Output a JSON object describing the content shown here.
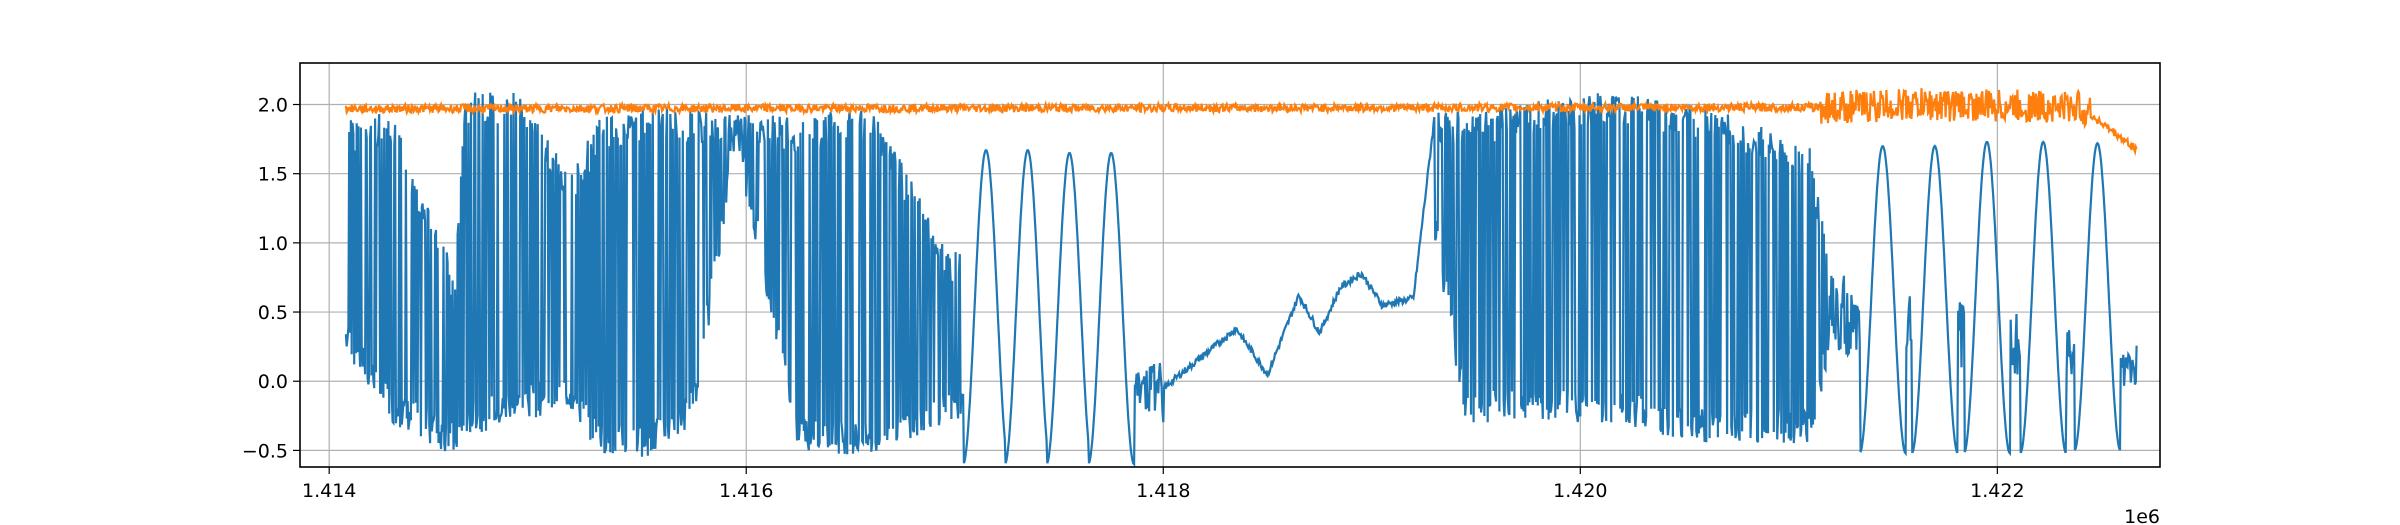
{
  "chart_data": {
    "type": "line",
    "title": "",
    "xlabel": "",
    "ylabel": "",
    "x_offset_label": "1e6",
    "xlim": [
      1.41386,
      1.42278
    ],
    "ylim": [
      -0.62,
      2.3
    ],
    "xticks": [
      1.414,
      1.416,
      1.418,
      1.42,
      1.422
    ],
    "xtick_labels": [
      "1.414",
      "1.416",
      "1.418",
      "1.420",
      "1.422"
    ],
    "yticks": [
      -0.5,
      0.0,
      0.5,
      1.0,
      1.5,
      2.0
    ],
    "ytick_labels": [
      "−0.5",
      "0.0",
      "0.5",
      "1.0",
      "1.5",
      "2.0"
    ],
    "grid": true,
    "series": [
      {
        "color": "#1f77b4",
        "x_range": [
          1.41408,
          1.42267
        ],
        "envelope": [
          {
            "x": 1.41408,
            "min": 0.2,
            "max": 1.9
          },
          {
            "x": 1.4143,
            "min": -0.3,
            "max": 1.95
          },
          {
            "x": 1.4146,
            "min": -0.55,
            "max": 0.8
          },
          {
            "x": 1.41465,
            "min": -0.4,
            "max": 2.1
          },
          {
            "x": 1.4149,
            "min": -0.3,
            "max": 2.1
          },
          {
            "x": 1.41515,
            "min": -0.2,
            "max": 1.5
          },
          {
            "x": 1.4153,
            "min": -0.55,
            "max": 1.9
          },
          {
            "x": 1.41555,
            "min": -0.55,
            "max": 2.0
          },
          {
            "x": 1.41575,
            "min": -0.3,
            "max": 1.95
          },
          {
            "x": 1.41595,
            "min": 1.7,
            "max": 1.95
          },
          {
            "x": 1.41625,
            "min": -0.5,
            "max": 1.9
          },
          {
            "x": 1.4166,
            "min": -0.55,
            "max": 2.0
          },
          {
            "x": 1.41695,
            "min": -0.3,
            "max": 1.0
          },
          {
            "x": 1.418,
            "min": -0.1,
            "max": -0.05
          },
          {
            "x": 1.4192,
            "min": 1.9,
            "max": 1.95
          },
          {
            "x": 1.41945,
            "min": -0.3,
            "max": 1.95
          },
          {
            "x": 1.4201,
            "min": -0.3,
            "max": 2.1
          },
          {
            "x": 1.4206,
            "min": -0.45,
            "max": 2.0
          },
          {
            "x": 1.4211,
            "min": -0.45,
            "max": 1.7
          },
          {
            "x": 1.4212,
            "min": 0.2,
            "max": 0.8
          },
          {
            "x": 1.42267,
            "min": -0.05,
            "max": 0.3
          }
        ],
        "oscillations": [
          {
            "x": 1.41715,
            "min": -0.6,
            "max": 1.67
          },
          {
            "x": 1.41735,
            "min": -0.6,
            "max": 1.67
          },
          {
            "x": 1.41755,
            "min": -0.6,
            "max": 1.65
          },
          {
            "x": 1.41775,
            "min": -0.6,
            "max": 1.65
          },
          {
            "x": 1.42145,
            "min": -0.52,
            "max": 1.7
          },
          {
            "x": 1.4217,
            "min": -0.52,
            "max": 1.7
          },
          {
            "x": 1.42195,
            "min": -0.52,
            "max": 1.73
          },
          {
            "x": 1.42222,
            "min": -0.52,
            "max": 1.73
          },
          {
            "x": 1.42248,
            "min": -0.5,
            "max": 1.72
          }
        ],
        "smooth_segment": [
          {
            "x": 1.418,
            "y": -0.05
          },
          {
            "x": 1.41835,
            "y": 0.38
          },
          {
            "x": 1.4185,
            "y": 0.05
          },
          {
            "x": 1.41865,
            "y": 0.62
          },
          {
            "x": 1.41875,
            "y": 0.35
          },
          {
            "x": 1.41885,
            "y": 0.68
          },
          {
            "x": 1.41895,
            "y": 0.78
          },
          {
            "x": 1.41905,
            "y": 0.55
          },
          {
            "x": 1.4192,
            "y": 0.6
          },
          {
            "x": 1.4193,
            "y": 1.9
          }
        ]
      },
      {
        "color": "#ff7f0e",
        "x_range": [
          1.41408,
          1.42267
        ],
        "points": [
          {
            "x": 1.41408,
            "y": 1.97
          },
          {
            "x": 1.4212,
            "y": 1.98
          },
          {
            "x": 1.4216,
            "y": 2.0,
            "amp": 0.15
          },
          {
            "x": 1.4224,
            "y": 1.98
          },
          {
            "x": 1.42267,
            "y": 1.67
          }
        ]
      }
    ]
  }
}
